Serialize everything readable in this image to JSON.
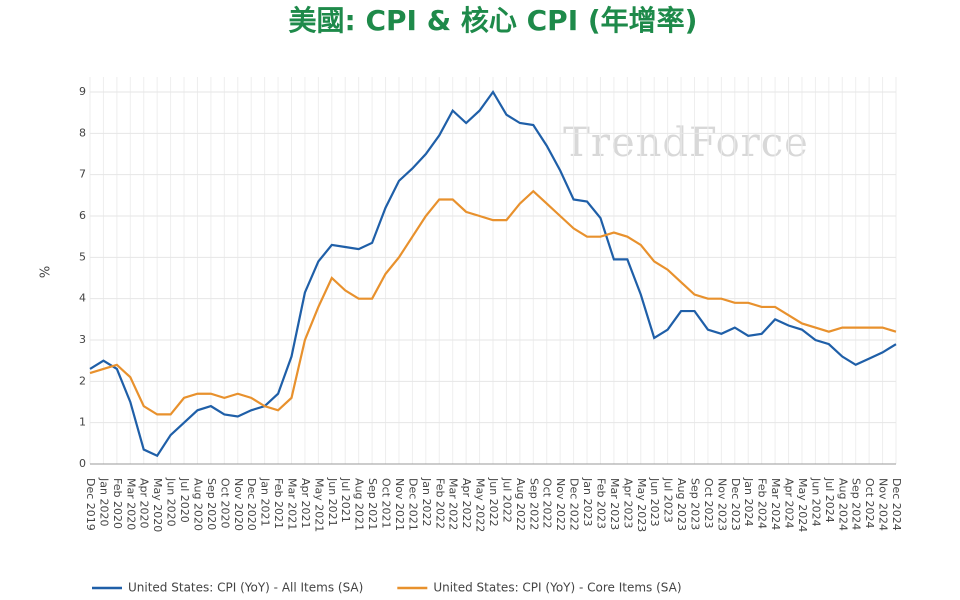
{
  "chart_data": {
    "type": "line",
    "title": "美國: CPI & 核心 CPI (年增率)",
    "y_label": "%",
    "watermark": "TrendForce",
    "categories": [
      "Dec 2019",
      "Jan 2020",
      "Feb 2020",
      "Mar 2020",
      "Apr 2020",
      "May 2020",
      "Jun 2020",
      "Jul 2020",
      "Aug 2020",
      "Sep 2020",
      "Oct 2020",
      "Nov 2020",
      "Dec 2020",
      "Jan 2021",
      "Feb 2021",
      "Mar 2021",
      "Apr 2021",
      "May 2021",
      "Jun 2021",
      "Jul 2021",
      "Aug 2021",
      "Sep 2021",
      "Oct 2021",
      "Nov 2021",
      "Dec 2021",
      "Jan 2022",
      "Feb 2022",
      "Mar 2022",
      "Apr 2022",
      "May 2022",
      "Jun 2022",
      "Jul 2022",
      "Aug 2022",
      "Sep 2022",
      "Oct 2022",
      "Nov 2022",
      "Dec 2022",
      "Jan 2023",
      "Feb 2023",
      "Mar 2023",
      "Apr 2023",
      "May 2023",
      "Jun 2023",
      "Jul 2023",
      "Aug 2023",
      "Sep 2023",
      "Oct 2023",
      "Nov 2023",
      "Dec 2023",
      "Jan 2024",
      "Feb 2024",
      "Mar 2024",
      "Apr 2024",
      "May 2024",
      "Jun 2024",
      "Jul 2024",
      "Aug 2024",
      "Sep 2024",
      "Oct 2024",
      "Nov 2024",
      "Dec 2024"
    ],
    "series": [
      {
        "name": "United States: CPI (YoY) - All Items (SA)",
        "color": "#1f5fa8",
        "values": [
          2.3,
          2.5,
          2.3,
          1.5,
          0.35,
          0.2,
          0.7,
          1.0,
          1.3,
          1.4,
          1.2,
          1.15,
          1.3,
          1.4,
          1.7,
          2.6,
          4.15,
          4.9,
          5.3,
          5.25,
          5.2,
          5.35,
          6.2,
          6.85,
          7.15,
          7.5,
          7.95,
          8.55,
          8.25,
          8.55,
          9.0,
          8.45,
          8.25,
          8.2,
          7.7,
          7.1,
          6.4,
          6.35,
          5.95,
          4.95,
          4.95,
          4.1,
          3.05,
          3.25,
          3.7,
          3.7,
          3.25,
          3.15,
          3.3,
          3.1,
          3.15,
          3.5,
          3.35,
          3.25,
          3.0,
          2.9,
          2.6,
          2.4,
          2.55,
          2.7,
          2.9
        ]
      },
      {
        "name": "United States: CPI (YoY) - Core Items (SA)",
        "color": "#e8912d",
        "values": [
          2.2,
          2.3,
          2.4,
          2.1,
          1.4,
          1.2,
          1.2,
          1.6,
          1.7,
          1.7,
          1.6,
          1.7,
          1.6,
          1.4,
          1.3,
          1.6,
          3.0,
          3.8,
          4.5,
          4.2,
          4.0,
          4.0,
          4.6,
          5.0,
          5.5,
          6.0,
          6.4,
          6.4,
          6.1,
          6.0,
          5.9,
          5.9,
          6.3,
          6.6,
          6.3,
          6.0,
          5.7,
          5.5,
          5.5,
          5.6,
          5.5,
          5.3,
          4.9,
          4.7,
          4.4,
          4.1,
          4.0,
          4.0,
          3.9,
          3.9,
          3.8,
          3.8,
          3.6,
          3.4,
          3.3,
          3.2,
          3.3,
          3.3,
          3.3,
          3.3,
          3.2
        ]
      }
    ],
    "ylim": [
      0,
      9
    ],
    "yticks": [
      0,
      1,
      2,
      3,
      4,
      5,
      6,
      7,
      8,
      9
    ],
    "grid": true
  }
}
